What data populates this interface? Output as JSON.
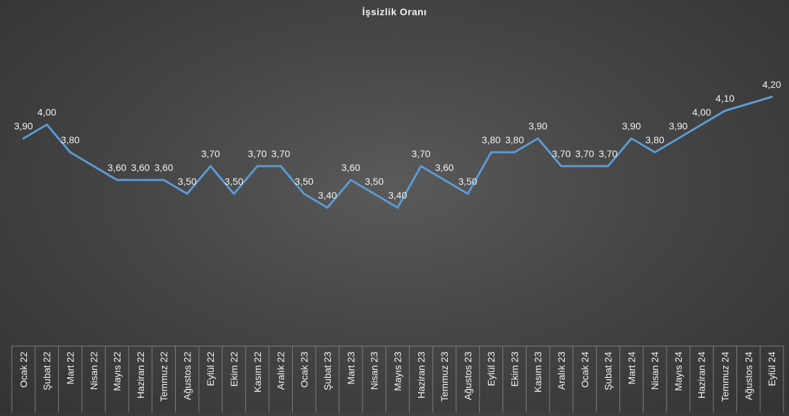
{
  "chart_data": {
    "type": "line",
    "title": "İşsizlik Oranı",
    "xlabel": "",
    "ylabel": "",
    "ylim": [
      2.4,
      4.4
    ],
    "grid": false,
    "legend": "none",
    "categories": [
      "Ocak 22",
      "Şubat 22",
      "Mart 22",
      "Nisan 22",
      "Mayıs 22",
      "Haziran 22",
      "Temmuz 22",
      "Ağustos 22",
      "Eylül 22",
      "Ekim 22",
      "Kasım 22",
      "Aralık 22",
      "Ocak 23",
      "Şubat 23",
      "Mart 23",
      "Nisan 23",
      "Mayıs 23",
      "Haziran 23",
      "Temmuz 23",
      "Ağustos 23",
      "Eylül 23",
      "Ekim 23",
      "Kasım 23",
      "Aralık 23",
      "Ocak 24",
      "Şubat 24",
      "Mart 24",
      "Nisan 24",
      "Mayıs 24",
      "Haziran 24",
      "Temmuz 24",
      "Ağustos 24",
      "Eylül 24"
    ],
    "series": [
      {
        "values": [
          3.9,
          4.0,
          3.8,
          3.7,
          3.6,
          3.6,
          3.6,
          3.5,
          3.7,
          3.5,
          3.7,
          3.7,
          3.5,
          3.4,
          3.6,
          3.5,
          3.4,
          3.7,
          3.6,
          3.5,
          3.8,
          3.8,
          3.9,
          3.7,
          3.7,
          3.7,
          3.9,
          3.8,
          3.9,
          4.0,
          4.1,
          4.15,
          4.2
        ],
        "data_labels": [
          "3,90",
          "4,00",
          "3,80",
          "",
          "3,60",
          "3,60",
          "3,60",
          "3,50",
          "3,70",
          "3,50",
          "3,70",
          "3,70",
          "3,50",
          "3,40",
          "3,60",
          "3,50",
          "3,40",
          "3,70",
          "3,60",
          "3,50",
          "3,80",
          "3,80",
          "3,90",
          "3,70",
          "3,70",
          "3,70",
          "3,90",
          "3,80",
          "3,90",
          "4,00",
          "4,10",
          "",
          "4,20"
        ]
      }
    ],
    "colors": {
      "line": "#5b9bd5",
      "label": "#f2f2f2",
      "axis": "#7f7f7f"
    }
  }
}
